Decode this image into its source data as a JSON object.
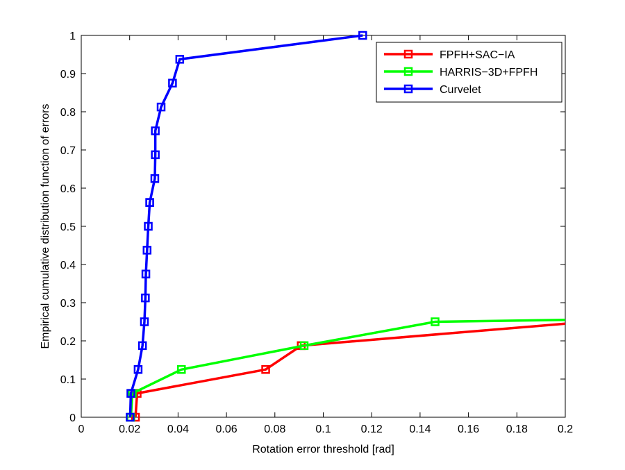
{
  "chart_data": {
    "type": "line",
    "xlabel": "Rotation error threshold [rad]",
    "ylabel": "Empirical cumulative distribution function of errors",
    "xlim": [
      0,
      0.2
    ],
    "ylim": [
      0,
      1
    ],
    "xticks": [
      0,
      0.02,
      0.04,
      0.06,
      0.08,
      0.1,
      0.12,
      0.14,
      0.16,
      0.18,
      0.2
    ],
    "xtick_labels": [
      "0",
      "0.02",
      "0.04",
      "0.06",
      "0.08",
      "0.1",
      "0.12",
      "0.14",
      "0.16",
      "0.18",
      "0.2"
    ],
    "yticks": [
      0,
      0.1,
      0.2,
      0.3,
      0.4,
      0.5,
      0.6,
      0.7,
      0.8,
      0.9,
      1
    ],
    "ytick_labels": [
      "0",
      "0.1",
      "0.2",
      "0.3",
      "0.4",
      "0.5",
      "0.6",
      "0.7",
      "0.8",
      "0.9",
      "1"
    ],
    "grid": false,
    "legend_position": "top-right",
    "series": [
      {
        "name": "FPFH+SAC−IA",
        "color": "#ff0000",
        "x": [
          0.0224,
          0.0231,
          0.0762,
          0.0909,
          0.2
        ],
        "y": [
          0,
          0.0625,
          0.125,
          0.1875,
          0.245
        ]
      },
      {
        "name": "HARRIS−3D+FPFH",
        "color": "#00ff00",
        "x": [
          0.0205,
          0.0211,
          0.0414,
          0.0921,
          0.1462,
          0.2
        ],
        "y": [
          0,
          0.0625,
          0.125,
          0.1875,
          0.25,
          0.255
        ]
      },
      {
        "name": "Curvelet",
        "color": "#0000ff",
        "x": [
          0.0202,
          0.0205,
          0.0235,
          0.0253,
          0.0261,
          0.0265,
          0.0267,
          0.0272,
          0.0277,
          0.0283,
          0.0283,
          0.0304,
          0.0306,
          0.0306,
          0.033,
          0.0377,
          0.0407,
          0.1163
        ],
        "y": [
          0,
          0.0625,
          0.125,
          0.1875,
          0.25,
          0.3125,
          0.375,
          0.4375,
          0.5,
          0.5625,
          0.5625,
          0.625,
          0.6875,
          0.75,
          0.8125,
          0.875,
          0.9375,
          1.0
        ]
      }
    ]
  }
}
